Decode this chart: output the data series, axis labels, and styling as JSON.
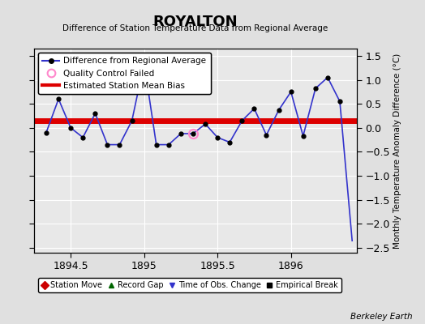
{
  "title": "ROYALTON",
  "subtitle": "Difference of Station Temperature Data from Regional Average",
  "ylabel": "Monthly Temperature Anomaly Difference (°C)",
  "credit": "Berkeley Earth",
  "xlim": [
    1894.25,
    1896.45
  ],
  "ylim": [
    -2.6,
    1.65
  ],
  "bias_value": 0.15,
  "line_color": "#3333cc",
  "bias_color": "#dd0000",
  "dot_color": "#000000",
  "qc_fail_color": "#ff88cc",
  "background_color": "#e8e8e8",
  "fig_background": "#e0e0e0",
  "grid_color": "#ffffff",
  "x_data": [
    1894.333,
    1894.417,
    1894.5,
    1894.583,
    1894.667,
    1894.75,
    1894.833,
    1894.917,
    1895.0,
    1895.083,
    1895.167,
    1895.25,
    1895.333,
    1895.417,
    1895.5,
    1895.583,
    1895.667,
    1895.75,
    1895.833,
    1895.917,
    1896.0,
    1896.083,
    1896.167,
    1896.25,
    1896.333,
    1896.417
  ],
  "y_data": [
    -0.1,
    0.6,
    0.0,
    -0.2,
    0.3,
    -0.35,
    -0.35,
    0.15,
    1.35,
    -0.35,
    -0.35,
    -0.12,
    -0.12,
    0.08,
    -0.2,
    -0.3,
    0.15,
    0.4,
    -0.15,
    0.37,
    0.75,
    -0.17,
    0.82,
    1.05,
    0.55,
    -2.35
  ],
  "dot_indices": [
    0,
    1,
    2,
    3,
    4,
    5,
    6,
    7,
    8,
    9,
    10,
    11,
    12,
    13,
    14,
    15,
    16,
    17,
    18,
    19,
    20,
    21,
    22,
    23,
    24
  ],
  "qc_fail_x": [
    1895.333
  ],
  "qc_fail_y": [
    -0.12
  ],
  "xticks": [
    1894.5,
    1895.0,
    1895.5,
    1896.0
  ],
  "xticklabels": [
    "1894.5",
    "1895",
    "1895.5",
    "1896"
  ],
  "legend_items": [
    {
      "label": "Difference from Regional Average"
    },
    {
      "label": "Quality Control Failed"
    },
    {
      "label": "Estimated Station Mean Bias"
    }
  ],
  "bottom_legend_items": [
    {
      "label": "Station Move",
      "color": "#cc0000",
      "marker": "D"
    },
    {
      "label": "Record Gap",
      "color": "#006600",
      "marker": "^"
    },
    {
      "label": "Time of Obs. Change",
      "color": "#3333cc",
      "marker": "v"
    },
    {
      "label": "Empirical Break",
      "color": "#000000",
      "marker": "s"
    }
  ]
}
